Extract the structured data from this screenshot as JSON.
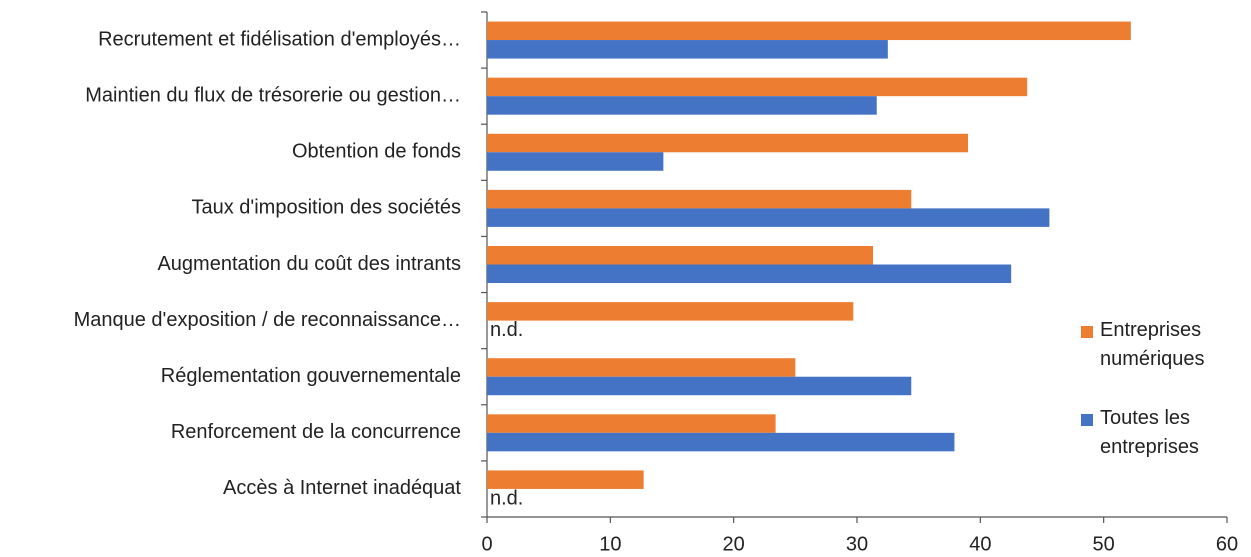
{
  "chart_data": {
    "type": "bar",
    "orientation": "horizontal",
    "categories": [
      "Recrutement et fidélisation d'employés…",
      "Maintien du flux de trésorerie ou gestion…",
      "Obtention de fonds",
      "Taux d'imposition des sociétés",
      "Augmentation du coût des intrants",
      "Manque d'exposition / de reconnaissance…",
      "Réglementation gouvernementale",
      "Renforcement de la concurrence",
      "Accès à Internet inadéquat"
    ],
    "series": [
      {
        "name": "Entreprises numériques",
        "color": "#ed7d31",
        "values": [
          52.2,
          43.8,
          39.0,
          34.4,
          31.3,
          29.7,
          25.0,
          23.4,
          12.7
        ]
      },
      {
        "name": "Toutes les entreprises",
        "color": "#4472c4",
        "values": [
          32.5,
          31.6,
          14.3,
          45.6,
          42.5,
          null,
          34.4,
          37.9,
          null
        ],
        "value_labels": [
          null,
          null,
          null,
          null,
          null,
          "n.d.",
          null,
          null,
          "n.d."
        ]
      }
    ],
    "xlim": [
      0,
      60
    ],
    "xticks": [
      0,
      10,
      20,
      30,
      40,
      50,
      60
    ],
    "grid": false,
    "legend": "right"
  }
}
